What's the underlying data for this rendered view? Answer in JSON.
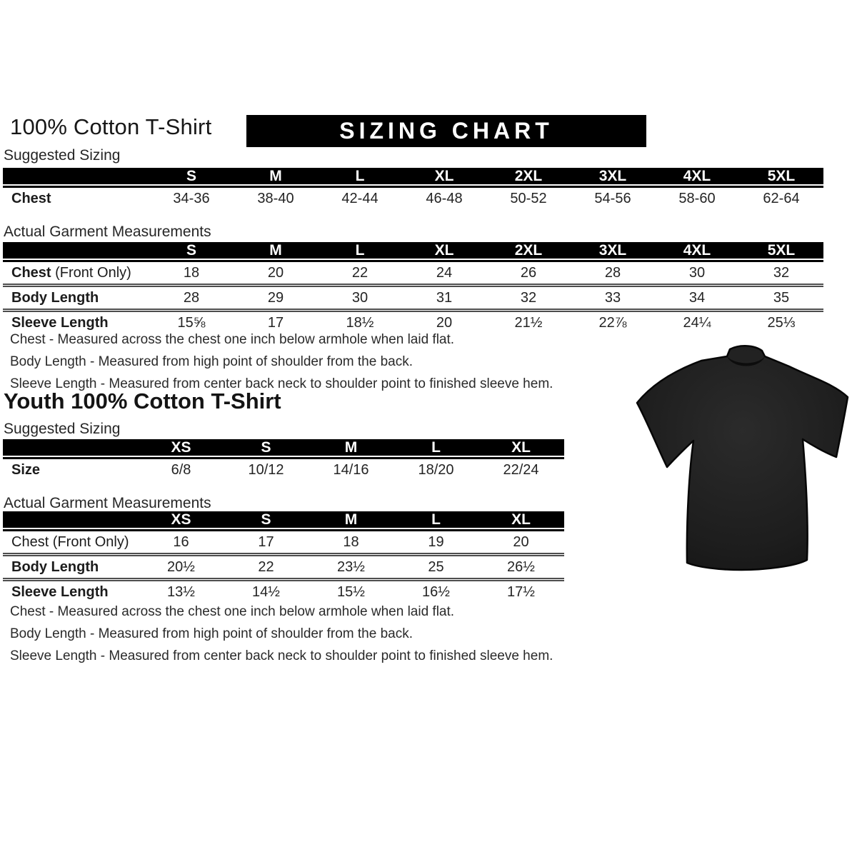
{
  "adult": {
    "title": "100% Cotton T-Shirt",
    "banner": "SIZING CHART",
    "suggested_label": "Suggested Sizing",
    "actual_label": "Actual Garment Measurements",
    "suggested": {
      "columns": [
        "S",
        "M",
        "L",
        "XL",
        "2XL",
        "3XL",
        "4XL",
        "5XL"
      ],
      "rows": [
        {
          "label": "Chest",
          "values": [
            "34-36",
            "38-40",
            "42-44",
            "46-48",
            "50-52",
            "54-56",
            "58-60",
            "62-64"
          ]
        }
      ]
    },
    "actual": {
      "columns": [
        "S",
        "M",
        "L",
        "XL",
        "2XL",
        "3XL",
        "4XL",
        "5XL"
      ],
      "rows": [
        {
          "label": "Chest",
          "suffix": " (Front Only)",
          "values": [
            "18",
            "20",
            "22",
            "24",
            "26",
            "28",
            "30",
            "32"
          ]
        },
        {
          "label": "Body Length",
          "values": [
            "28",
            "29",
            "30",
            "31",
            "32",
            "33",
            "34",
            "35"
          ]
        },
        {
          "label": "Sleeve Length",
          "values": [
            "15⅝",
            "17",
            "18½",
            "20",
            "21½",
            "22⅞",
            "24¼",
            "25⅓"
          ]
        }
      ]
    },
    "notes": [
      "Chest - Measured across the chest one inch below armhole when laid flat.",
      "Body Length - Measured from high point of shoulder from the back.",
      "Sleeve Length - Measured from center back neck to shoulder point to finished sleeve hem."
    ]
  },
  "youth": {
    "title": "Youth 100% Cotton T-Shirt",
    "suggested_label": "Suggested Sizing",
    "actual_label": "Actual Garment Measurements",
    "suggested": {
      "columns": [
        "XS",
        "S",
        "M",
        "L",
        "XL"
      ],
      "rows": [
        {
          "label": "Size",
          "values": [
            "6/8",
            "10/12",
            "14/16",
            "18/20",
            "22/24"
          ]
        }
      ]
    },
    "actual": {
      "columns": [
        "XS",
        "S",
        "M",
        "L",
        "XL"
      ],
      "rows": [
        {
          "label": "Chest",
          "suffix": " (Front Only)",
          "label_bold": false,
          "values": [
            "16",
            "17",
            "18",
            "19",
            "20"
          ]
        },
        {
          "label": "Body Length",
          "values": [
            "20½",
            "22",
            "23½",
            "25",
            "26½"
          ]
        },
        {
          "label": "Sleeve Length",
          "values": [
            "13½",
            "14½",
            "15½",
            "16½",
            "17½"
          ]
        }
      ]
    },
    "notes": [
      "Chest - Measured across the chest one inch below armhole when laid flat.",
      "Body Length - Measured from high point of shoulder from the back.",
      "Sleeve Length - Measured from center back neck to shoulder point to finished sleeve hem."
    ]
  },
  "colors": {
    "header_bar": "#000000",
    "header_text": "#ffffff",
    "body_text": "#1c1c1c",
    "shirt": "#1f1f1f"
  }
}
